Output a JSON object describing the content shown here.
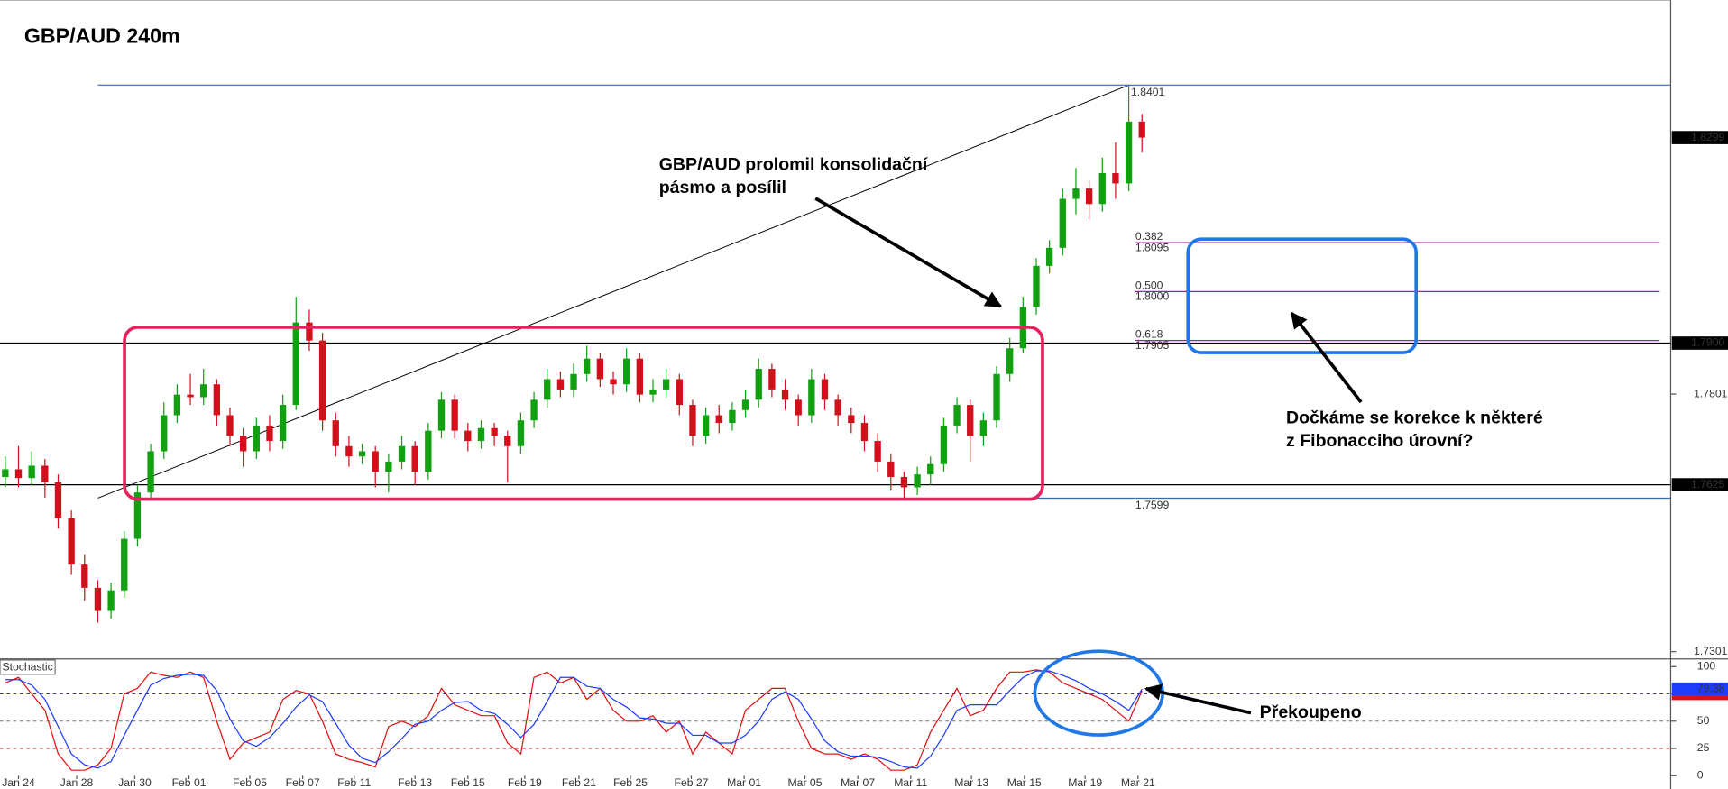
{
  "chart_data": [
    {
      "type": "candlestick",
      "title": "GBP/AUD 240m",
      "up_color": "#10a010",
      "down_color": "#d40f1c",
      "open": [
        1.764,
        1.7655,
        1.7638,
        1.7662,
        1.763,
        1.756,
        1.747,
        1.7425,
        1.738,
        1.742,
        1.752,
        1.761,
        1.769,
        1.776,
        1.78,
        1.7795,
        1.782,
        1.776,
        1.772,
        1.769,
        1.774,
        1.771,
        1.778,
        1.794,
        1.7905,
        1.775,
        1.77,
        1.768,
        1.769,
        1.765,
        1.767,
        1.77,
        1.765,
        1.773,
        1.779,
        1.773,
        1.771,
        1.7735,
        1.772,
        1.77,
        1.775,
        1.779,
        1.783,
        1.781,
        1.784,
        1.787,
        1.783,
        1.782,
        1.787,
        1.78,
        1.781,
        1.783,
        1.778,
        1.772,
        1.776,
        1.7745,
        1.777,
        1.779,
        1.785,
        1.781,
        1.779,
        1.776,
        1.783,
        1.779,
        1.776,
        1.7745,
        1.771,
        1.767,
        1.764,
        1.762,
        1.7645,
        1.7665,
        1.774,
        1.778,
        1.772,
        1.775,
        1.784,
        1.789,
        1.797,
        1.805,
        1.8085,
        1.818,
        1.82,
        1.817,
        1.823,
        1.821,
        1.833
      ],
      "high": [
        1.768,
        1.77,
        1.769,
        1.7675,
        1.7645,
        1.7575,
        1.749,
        1.744,
        1.7435,
        1.7535,
        1.7625,
        1.7705,
        1.7785,
        1.782,
        1.784,
        1.785,
        1.783,
        1.7775,
        1.7735,
        1.7755,
        1.776,
        1.78,
        1.799,
        1.7965,
        1.792,
        1.7765,
        1.772,
        1.7705,
        1.77,
        1.7685,
        1.772,
        1.771,
        1.7745,
        1.7805,
        1.78,
        1.7745,
        1.775,
        1.7745,
        1.773,
        1.7765,
        1.7805,
        1.785,
        1.7845,
        1.786,
        1.7895,
        1.788,
        1.7845,
        1.789,
        1.788,
        1.783,
        1.785,
        1.784,
        1.779,
        1.7775,
        1.778,
        1.7785,
        1.781,
        1.787,
        1.786,
        1.783,
        1.78,
        1.785,
        1.784,
        1.78,
        1.7775,
        1.776,
        1.7725,
        1.7685,
        1.765,
        1.766,
        1.768,
        1.7755,
        1.7795,
        1.779,
        1.7765,
        1.7855,
        1.791,
        1.799,
        1.8065,
        1.81,
        1.82,
        1.824,
        1.8215,
        1.826,
        1.829,
        1.8401,
        1.8345
      ],
      "low": [
        1.762,
        1.762,
        1.7625,
        1.76,
        1.754,
        1.745,
        1.74,
        1.7357,
        1.7365,
        1.7405,
        1.7505,
        1.7595,
        1.7675,
        1.7745,
        1.778,
        1.778,
        1.774,
        1.77,
        1.766,
        1.7675,
        1.769,
        1.7695,
        1.777,
        1.7885,
        1.773,
        1.768,
        1.766,
        1.7665,
        1.762,
        1.761,
        1.7655,
        1.7625,
        1.7635,
        1.7715,
        1.7715,
        1.769,
        1.7695,
        1.77,
        1.763,
        1.7685,
        1.7735,
        1.7775,
        1.7795,
        1.7795,
        1.7825,
        1.7815,
        1.78,
        1.7805,
        1.7785,
        1.7785,
        1.7795,
        1.776,
        1.77,
        1.7705,
        1.7725,
        1.773,
        1.7755,
        1.7775,
        1.7795,
        1.777,
        1.774,
        1.7745,
        1.777,
        1.774,
        1.7725,
        1.769,
        1.765,
        1.7615,
        1.7599,
        1.7605,
        1.7625,
        1.765,
        1.7725,
        1.767,
        1.77,
        1.7735,
        1.7825,
        1.788,
        1.7955,
        1.8035,
        1.807,
        1.815,
        1.814,
        1.8155,
        1.818,
        1.8195,
        1.827
      ],
      "close": [
        1.7655,
        1.7638,
        1.7662,
        1.763,
        1.756,
        1.747,
        1.7425,
        1.738,
        1.742,
        1.752,
        1.761,
        1.769,
        1.776,
        1.78,
        1.7795,
        1.782,
        1.776,
        1.772,
        1.769,
        1.774,
        1.771,
        1.778,
        1.794,
        1.7905,
        1.775,
        1.77,
        1.768,
        1.769,
        1.765,
        1.767,
        1.77,
        1.765,
        1.773,
        1.779,
        1.773,
        1.771,
        1.7735,
        1.772,
        1.77,
        1.775,
        1.779,
        1.783,
        1.781,
        1.784,
        1.787,
        1.783,
        1.782,
        1.787,
        1.78,
        1.781,
        1.783,
        1.778,
        1.772,
        1.776,
        1.7745,
        1.777,
        1.779,
        1.785,
        1.781,
        1.779,
        1.776,
        1.783,
        1.779,
        1.776,
        1.7745,
        1.771,
        1.767,
        1.764,
        1.762,
        1.7645,
        1.7665,
        1.774,
        1.778,
        1.772,
        1.775,
        1.784,
        1.789,
        1.797,
        1.805,
        1.8085,
        1.818,
        1.82,
        1.817,
        1.823,
        1.821,
        1.833,
        1.8299
      ],
      "xlim": [
        -0.4,
        126
      ],
      "xticks": [
        {
          "value": 1,
          "label": "Jan 24"
        },
        {
          "value": 5.4,
          "label": "Jan 28"
        },
        {
          "value": 9.8,
          "label": "Jan 30"
        },
        {
          "value": 13.9,
          "label": "Feb 01"
        },
        {
          "value": 18.5,
          "label": "Feb 05"
        },
        {
          "value": 22.5,
          "label": "Feb 07"
        },
        {
          "value": 26.4,
          "label": "Feb 11"
        },
        {
          "value": 31,
          "label": "Feb 13"
        },
        {
          "value": 35,
          "label": "Feb 15"
        },
        {
          "value": 39.3,
          "label": "Feb 19"
        },
        {
          "value": 43.4,
          "label": "Feb 21"
        },
        {
          "value": 47.3,
          "label": "Feb 25"
        },
        {
          "value": 51.9,
          "label": "Feb 27"
        },
        {
          "value": 55.9,
          "label": "Mar 01"
        },
        {
          "value": 60.5,
          "label": "Mar 05"
        },
        {
          "value": 64.5,
          "label": "Mar 07"
        },
        {
          "value": 68.5,
          "label": "Mar 11"
        },
        {
          "value": 73.1,
          "label": "Mar 13"
        },
        {
          "value": 77.1,
          "label": "Mar 15"
        },
        {
          "value": 81.7,
          "label": "Mar 19"
        },
        {
          "value": 85.7,
          "label": "Mar 21"
        }
      ],
      "ylim": [
        1.7289,
        1.8566
      ],
      "yticks": [
        1.7301,
        1.7801
      ],
      "price_lines": [
        {
          "value": 1.79,
          "label": "1.7900",
          "color": "#000000"
        },
        {
          "value": 1.7625,
          "color": "#000000"
        }
      ],
      "fibonacci": {
        "high": 1.8401,
        "low": 1.7599,
        "anchor_color": "#2f6db5",
        "level_color": "#a0209a",
        "levels": [
          {
            "ratio": 0.382,
            "price": 1.8095
          },
          {
            "ratio": {
              "value": 0.5,
              "label": "0.500"
            },
            "price": {
              "value": 1.8,
              "label": "1.8000"
            }
          },
          {
            "ratio": 0.618,
            "price": 1.7905
          }
        ]
      },
      "annotations": [
        {
          "lines": [
            "GBP/AUD prolomil konsolidační",
            "pásmo a posílil"
          ]
        },
        {
          "lines": [
            "Dočkáme se korekce k některé",
            "z Fibonacciho úrovní?"
          ]
        }
      ]
    },
    {
      "type": "line",
      "title": "Stochastic",
      "xlim": [
        -0.4,
        126
      ],
      "ylim": [
        0,
        107
      ],
      "yticks": [
        0,
        25,
        50,
        75,
        100
      ],
      "levels": [
        {
          "value": 75,
          "color": "#3030c0"
        },
        {
          "value": 50,
          "color": "#707070"
        },
        {
          "value": 25,
          "color": "#c03030"
        }
      ],
      "series": [
        {
          "color": "#e01010",
          "values": [
            85,
            90,
            75,
            60,
            20,
            5,
            5,
            10,
            25,
            75,
            80,
            95,
            92,
            90,
            95,
            90,
            50,
            15,
            30,
            35,
            40,
            70,
            78,
            75,
            50,
            20,
            15,
            12,
            8,
            45,
            50,
            45,
            55,
            80,
            65,
            60,
            55,
            55,
            30,
            20,
            90,
            95,
            85,
            90,
            70,
            80,
            60,
            50,
            50,
            55,
            40,
            50,
            20,
            40,
            30,
            20,
            60,
            70,
            80,
            80,
            50,
            25,
            20,
            20,
            15,
            20,
            15,
            5,
            5,
            10,
            40,
            60,
            80,
            55,
            60,
            80,
            95,
            95,
            97,
            95,
            85,
            80,
            75,
            70,
            60,
            50,
            78
          ]
        },
        {
          "color": "#1e3cff",
          "values": [
            88,
            88,
            83,
            70,
            45,
            20,
            10,
            7,
            13,
            37,
            60,
            83,
            89,
            92,
            93,
            92,
            78,
            52,
            32,
            27,
            35,
            48,
            63,
            74,
            68,
            48,
            28,
            16,
            12,
            22,
            34,
            47,
            50,
            60,
            67,
            68,
            60,
            57,
            47,
            35,
            47,
            68,
            90,
            90,
            82,
            80,
            70,
            63,
            53,
            52,
            48,
            48,
            37,
            37,
            30,
            30,
            37,
            50,
            70,
            77,
            70,
            52,
            32,
            22,
            18,
            18,
            17,
            13,
            8,
            7,
            18,
            37,
            60,
            65,
            65,
            65,
            78,
            90,
            96,
            96,
            92,
            87,
            80,
            75,
            68,
            60,
            79.38
          ]
        }
      ],
      "annotation": "Překoupeno"
    }
  ]
}
